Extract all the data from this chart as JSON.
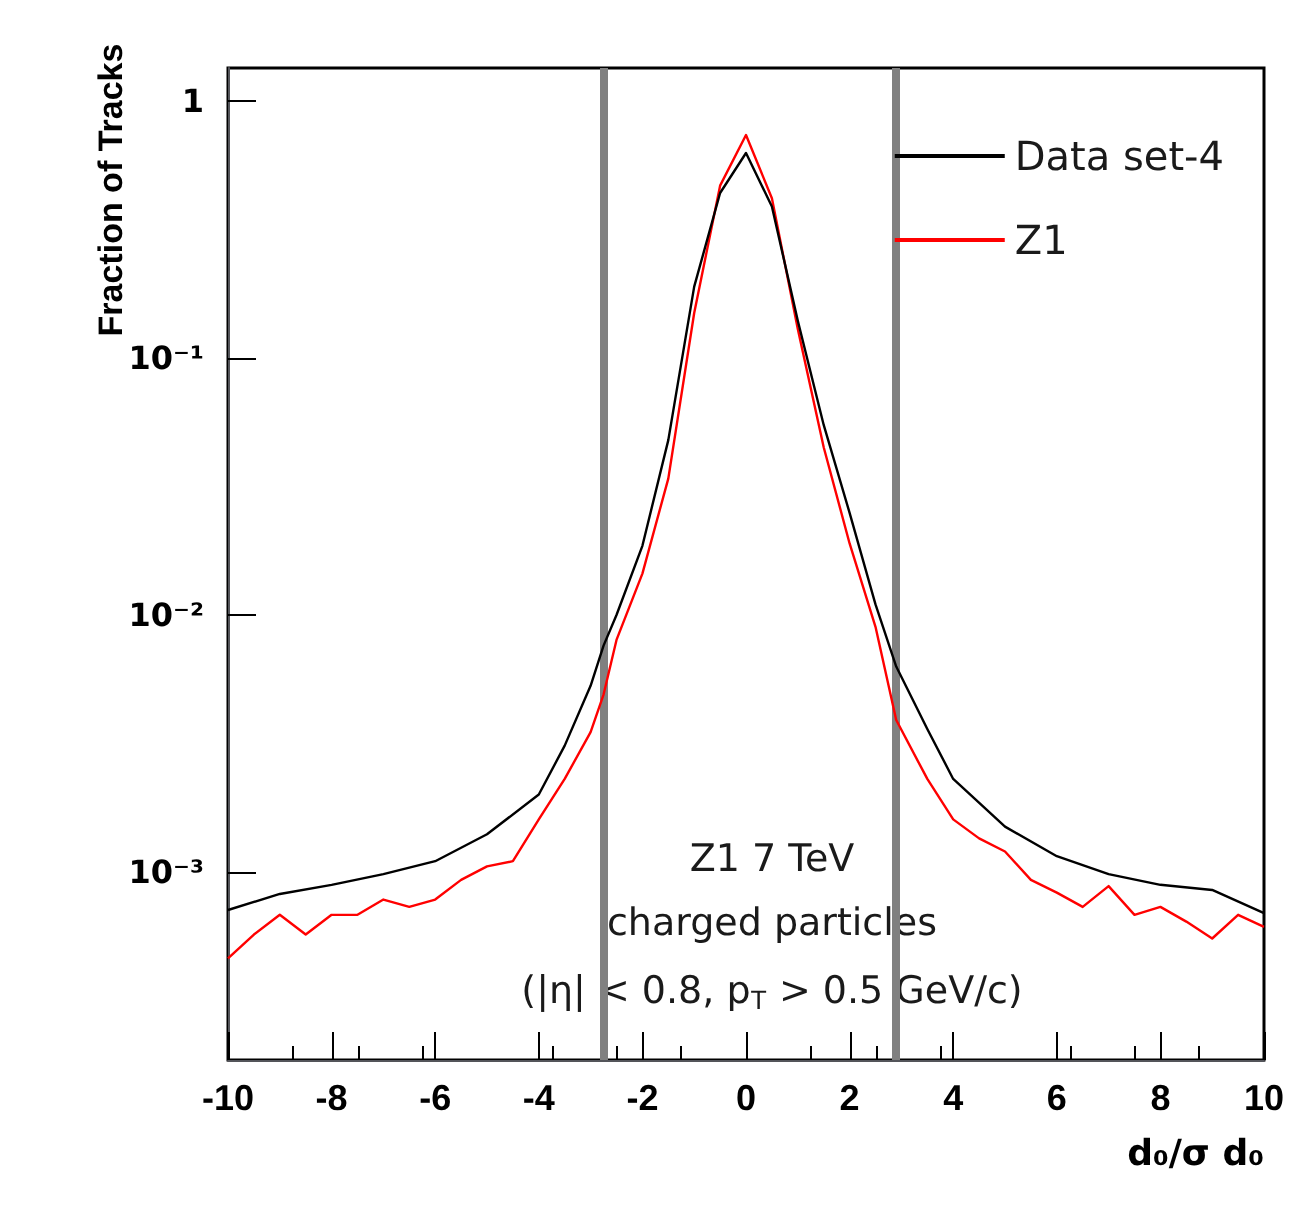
{
  "chart_data": {
    "type": "line",
    "xlabel": "d₀/σ d₀",
    "ylabel": "Fraction of Tracks",
    "annotations": [
      "Z1 7 TeV",
      "charged particles",
      "(|η| < 0.8, p$_{T}$ > 0.5 GeV/c)"
    ],
    "log": "y",
    "legend": "top right",
    "xlim": [
      -10,
      10
    ],
    "xticks": [
      -10,
      -8,
      -6,
      -4,
      -2,
      0,
      2,
      4,
      6,
      8,
      10
    ],
    "ylim": [
      0.000185,
      1.35
    ],
    "yticks": [
      1,
      {
        "value": 0.1,
        "label": "10⁻¹"
      },
      {
        "value": 0.01,
        "label": "10⁻²"
      },
      {
        "value": 0.001,
        "label": "10⁻³"
      }
    ],
    "ref_lines": [
      {
        "axis": "x",
        "value": -2.75,
        "color": "#808080"
      },
      {
        "axis": "x",
        "value": 2.9,
        "color": "#808080"
      }
    ],
    "series": [
      {
        "name": "Data set-4",
        "color": "#000000",
        "x": [
          -10,
          -9,
          -8,
          -7,
          -6,
          -5,
          -4,
          -3.5,
          -3,
          -2.75,
          -2.5,
          -2,
          -1.5,
          -1,
          -0.5,
          0,
          0.5,
          1,
          1.5,
          2,
          2.5,
          2.9,
          3.5,
          4,
          5,
          6,
          7,
          8,
          9,
          10
        ],
        "values": [
          0.00071,
          0.00082,
          0.00089,
          0.00098,
          0.0011,
          0.0014,
          0.002,
          0.0031,
          0.0053,
          0.0076,
          0.01,
          0.0186,
          0.048,
          0.19,
          0.44,
          0.63,
          0.39,
          0.14,
          0.055,
          0.025,
          0.011,
          0.0063,
          0.0036,
          0.0023,
          0.0015,
          0.00115,
          0.00098,
          0.00089,
          0.00085,
          0.00069
        ]
      },
      {
        "name": "Z1",
        "color": "#ff0000",
        "x": [
          -10,
          -9.5,
          -9,
          -8.5,
          -8,
          -7.5,
          -7,
          -6.5,
          -6,
          -5.5,
          -5,
          -4.5,
          -4,
          -3.5,
          -3,
          -2.75,
          -2.5,
          -2,
          -1.5,
          -1,
          -0.5,
          0,
          0.5,
          1,
          1.5,
          2,
          2.5,
          2.9,
          3.5,
          4,
          4.5,
          5,
          5.5,
          6,
          6.5,
          7,
          7.5,
          8,
          8.5,
          9,
          9.5,
          10
        ],
        "values": [
          0.00046,
          0.00057,
          0.00068,
          0.00057,
          0.00068,
          0.00068,
          0.00078,
          0.00073,
          0.00078,
          0.00093,
          0.00105,
          0.0011,
          0.0016,
          0.0023,
          0.0035,
          0.0049,
          0.008,
          0.0145,
          0.034,
          0.15,
          0.47,
          0.74,
          0.42,
          0.13,
          0.045,
          0.019,
          0.009,
          0.0039,
          0.0023,
          0.0016,
          0.00135,
          0.0012,
          0.00093,
          0.00083,
          0.00073,
          0.00088,
          0.00068,
          0.00073,
          0.00064,
          0.00055,
          0.00068,
          0.00061
        ]
      }
    ]
  }
}
